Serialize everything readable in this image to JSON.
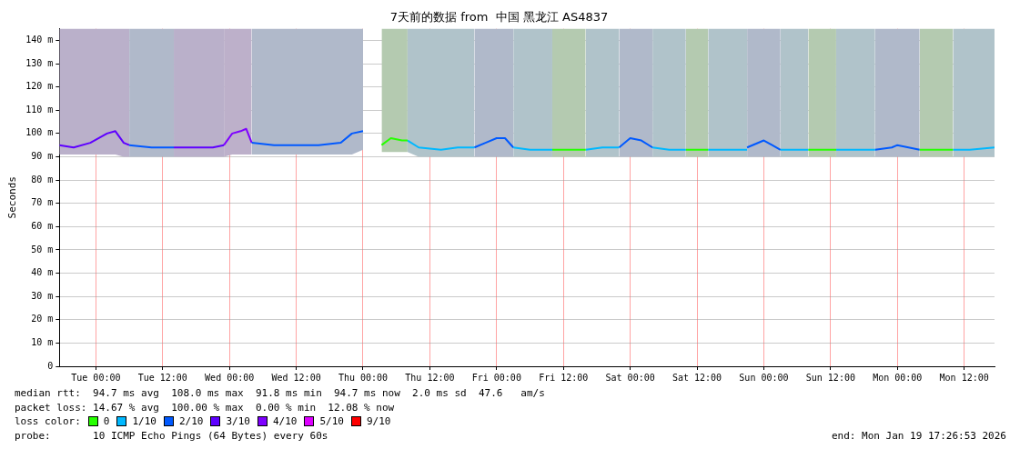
{
  "chart_data": {
    "type": "line",
    "title": "7天前的数据 from  中国 黑龙江 AS4837",
    "ylabel": "Seconds",
    "legend_title": "loss color:",
    "legend": "bottom",
    "grid": true,
    "marker": "none",
    "line_style": "solid",
    "xlim": [
      "2026-01-12T17:27",
      "2026-01-19T17:27"
    ],
    "xticks": [
      {
        "value": "2026-01-13T00:00",
        "label": "Tue 00:00"
      },
      {
        "value": "2026-01-13T12:00",
        "label": "Tue 12:00"
      },
      {
        "value": "2026-01-14T00:00",
        "label": "Wed 00:00"
      },
      {
        "value": "2026-01-14T12:00",
        "label": "Wed 12:00"
      },
      {
        "value": "2026-01-15T00:00",
        "label": "Thu 00:00"
      },
      {
        "value": "2026-01-15T12:00",
        "label": "Thu 12:00"
      },
      {
        "value": "2026-01-16T00:00",
        "label": "Fri 00:00"
      },
      {
        "value": "2026-01-16T12:00",
        "label": "Fri 12:00"
      },
      {
        "value": "2026-01-17T00:00",
        "label": "Sat 00:00"
      },
      {
        "value": "2026-01-17T12:00",
        "label": "Sat 12:00"
      },
      {
        "value": "2026-01-18T00:00",
        "label": "Sun 00:00"
      },
      {
        "value": "2026-01-18T12:00",
        "label": "Sun 12:00"
      },
      {
        "value": "2026-01-19T00:00",
        "label": "Mon 00:00"
      },
      {
        "value": "2026-01-19T12:00",
        "label": "Mon 12:00"
      }
    ],
    "ylim": [
      0,
      145
    ],
    "yticks": [
      0,
      {
        "value": 10,
        "label": "10 m"
      },
      {
        "value": 20,
        "label": "20 m"
      },
      {
        "value": 30,
        "label": "30 m"
      },
      {
        "value": 40,
        "label": "40 m"
      },
      {
        "value": 50,
        "label": "50 m"
      },
      {
        "value": 60,
        "label": "60 m"
      },
      {
        "value": 70,
        "label": "70 m"
      },
      {
        "value": 80,
        "label": "80 m"
      },
      {
        "value": 90,
        "label": "90 m"
      },
      {
        "value": 100,
        "label": "100 m"
      },
      {
        "value": 110,
        "label": "110 m"
      },
      {
        "value": 120,
        "label": "120 m"
      },
      {
        "value": 130,
        "label": "130 m"
      },
      {
        "value": 140,
        "label": "140 m"
      }
    ],
    "series": [
      {
        "name": "0",
        "color": "#26ff00",
        "x": [
          "2026-01-15T03:20",
          "2026-01-15T05:00",
          "2026-01-15T07:00",
          "2026-01-15T08:00",
          "2026-01-15T20:00",
          "2026-01-16T10:00",
          "2026-01-16T13:00",
          "2026-01-16T16:00",
          "2026-01-17T00:00",
          "2026-01-17T10:00",
          "2026-01-17T12:00",
          "2026-01-17T14:00",
          "2026-01-18T00:00",
          "2026-01-18T08:00",
          "2026-01-18T10:30",
          "2026-01-18T13:00",
          "2026-01-19T00:00",
          "2026-01-19T04:00",
          "2026-01-19T07:00",
          "2026-01-19T10:00"
        ],
        "values": [
          95,
          98,
          97,
          97,
          null,
          93,
          93,
          93,
          null,
          93,
          93,
          93,
          null,
          93,
          93,
          93,
          null,
          93,
          93,
          93
        ],
        "lower": [
          92,
          92,
          92,
          92,
          null,
          90,
          90,
          90,
          null,
          90,
          90,
          90,
          null,
          90,
          90,
          90,
          null,
          90,
          90,
          90
        ],
        "upper": [
          145,
          145,
          145,
          145,
          null,
          145,
          145,
          145,
          null,
          145,
          145,
          145,
          null,
          145,
          145,
          145,
          null,
          145,
          145,
          145
        ]
      },
      {
        "name": "1/10",
        "color": "#00b8ff",
        "x": [
          "2026-01-15T08:00",
          "2026-01-15T10:00",
          "2026-01-15T14:00",
          "2026-01-15T17:00",
          "2026-01-15T20:00",
          "2026-01-16T00:00",
          "2026-01-16T03:00",
          "2026-01-16T06:00",
          "2026-01-16T10:00",
          "2026-01-16T13:00",
          "2026-01-16T16:00",
          "2026-01-16T19:00",
          "2026-01-16T22:00",
          "2026-01-17T01:00",
          "2026-01-17T04:00",
          "2026-01-17T07:00",
          "2026-01-17T10:00",
          "2026-01-17T12:00",
          "2026-01-17T14:00",
          "2026-01-17T18:00",
          "2026-01-17T21:00",
          "2026-01-18T00:00",
          "2026-01-18T03:00",
          "2026-01-18T06:00",
          "2026-01-18T08:00",
          "2026-01-18T10:00",
          "2026-01-18T13:00",
          "2026-01-18T17:00",
          "2026-01-18T20:00",
          "2026-01-19T00:00",
          "2026-01-19T10:00",
          "2026-01-19T13:00",
          "2026-01-19T17:27"
        ],
        "values": [
          97,
          94,
          93,
          94,
          94,
          null,
          94,
          93,
          93,
          null,
          93,
          94,
          94,
          null,
          94,
          93,
          93,
          null,
          93,
          93,
          93,
          null,
          93,
          93,
          93,
          null,
          93,
          93,
          93,
          null,
          93,
          93,
          94
        ],
        "lower": [
          92,
          90,
          90,
          90,
          90,
          null,
          90,
          90,
          90,
          null,
          90,
          90,
          90,
          null,
          90,
          90,
          90,
          null,
          90,
          90,
          90,
          null,
          90,
          90,
          90,
          null,
          90,
          90,
          90,
          null,
          90,
          90,
          90
        ],
        "upper": [
          145,
          145,
          145,
          145,
          145,
          null,
          145,
          145,
          145,
          null,
          145,
          145,
          145,
          null,
          145,
          145,
          145,
          null,
          145,
          145,
          145,
          null,
          145,
          145,
          145,
          null,
          145,
          145,
          145,
          null,
          145,
          145,
          145
        ]
      },
      {
        "name": "2/10",
        "color": "#0059ff",
        "x": [
          "2026-01-13T06:00",
          "2026-01-13T10:00",
          "2026-01-13T14:00",
          "2026-01-13T20:00",
          "2026-01-14T04:00",
          "2026-01-14T08:00",
          "2026-01-14T12:00",
          "2026-01-14T16:00",
          "2026-01-14T20:00",
          "2026-01-14T22:00",
          "2026-01-15T00:00",
          "2026-01-15T10:00",
          "2026-01-15T20:00",
          "2026-01-15T22:00",
          "2026-01-16T00:00",
          "2026-01-16T01:30",
          "2026-01-16T03:00",
          "2026-01-16T12:00",
          "2026-01-16T22:00",
          "2026-01-17T00:00",
          "2026-01-17T02:00",
          "2026-01-17T04:00",
          "2026-01-17T12:00",
          "2026-01-17T21:00",
          "2026-01-18T00:00",
          "2026-01-18T01:30",
          "2026-01-18T03:00",
          "2026-01-18T12:00",
          "2026-01-18T20:00",
          "2026-01-18T23:00",
          "2026-01-19T00:00",
          "2026-01-19T02:00",
          "2026-01-19T04:00"
        ],
        "values": [
          95,
          94,
          94,
          null,
          96,
          95,
          95,
          95,
          96,
          100,
          101,
          null,
          94,
          96,
          98,
          98,
          94,
          null,
          94,
          98,
          97,
          94,
          null,
          94,
          97,
          95,
          93,
          null,
          93,
          94,
          95,
          94,
          93
        ],
        "lower": [
          90,
          90,
          90,
          null,
          91,
          91,
          91,
          91,
          91,
          91,
          93,
          null,
          90,
          90,
          90,
          90,
          90,
          null,
          90,
          90,
          90,
          90,
          null,
          90,
          90,
          90,
          90,
          null,
          90,
          90,
          90,
          90,
          90
        ],
        "upper": [
          145,
          145,
          145,
          null,
          145,
          145,
          145,
          145,
          145,
          145,
          145,
          null,
          145,
          145,
          145,
          145,
          145,
          null,
          145,
          145,
          145,
          145,
          null,
          145,
          145,
          145,
          145,
          null,
          145,
          145,
          145,
          145,
          145
        ]
      },
      {
        "name": "3/10",
        "color": "#5e00ff",
        "x": [
          "2026-01-12T17:27",
          "2026-01-12T20:00",
          "2026-01-12T23:00",
          "2026-01-13T02:00",
          "2026-01-13T03:30",
          "2026-01-13T05:00",
          "2026-01-13T06:00",
          "2026-01-13T10:00",
          "2026-01-13T14:00",
          "2026-01-13T18:00",
          "2026-01-13T21:00",
          "2026-01-13T23:00"
        ],
        "values": [
          95,
          94,
          96,
          100,
          101,
          96,
          95,
          null,
          94,
          94,
          94,
          95
        ],
        "lower": [
          91,
          91,
          91,
          91,
          91,
          90,
          90,
          null,
          90,
          90,
          90,
          90
        ],
        "upper": [
          145,
          145,
          145,
          145,
          145,
          145,
          145,
          null,
          145,
          145,
          145,
          145
        ]
      },
      {
        "name": "4/10",
        "color": "#7e00ff",
        "x": [
          "2026-01-13T23:00",
          "2026-01-14T00:30",
          "2026-01-14T02:00",
          "2026-01-14T03:00",
          "2026-01-14T04:00"
        ],
        "values": [
          95,
          100,
          101,
          102,
          96
        ],
        "lower": [
          90,
          91,
          91,
          91,
          91
        ],
        "upper": [
          145,
          145,
          145,
          145,
          145
        ]
      },
      {
        "name": "5/10",
        "color": "#dd00ff"
      },
      {
        "name": "9/10",
        "color": "#ff0000"
      }
    ],
    "annotations": [
      "median rtt:  94.7 ms avg  108.0 ms max  91.8 ms min  94.7 ms now  2.0 ms sd  47.6   am/s",
      "packet loss: 14.67 % avg  100.00 % max  0.00 % min  12.08 % now",
      "probe:       10 ICMP Echo Pings (64 Bytes) every 60s",
      "end: Mon Jan 19 17:26:53 2026"
    ]
  }
}
